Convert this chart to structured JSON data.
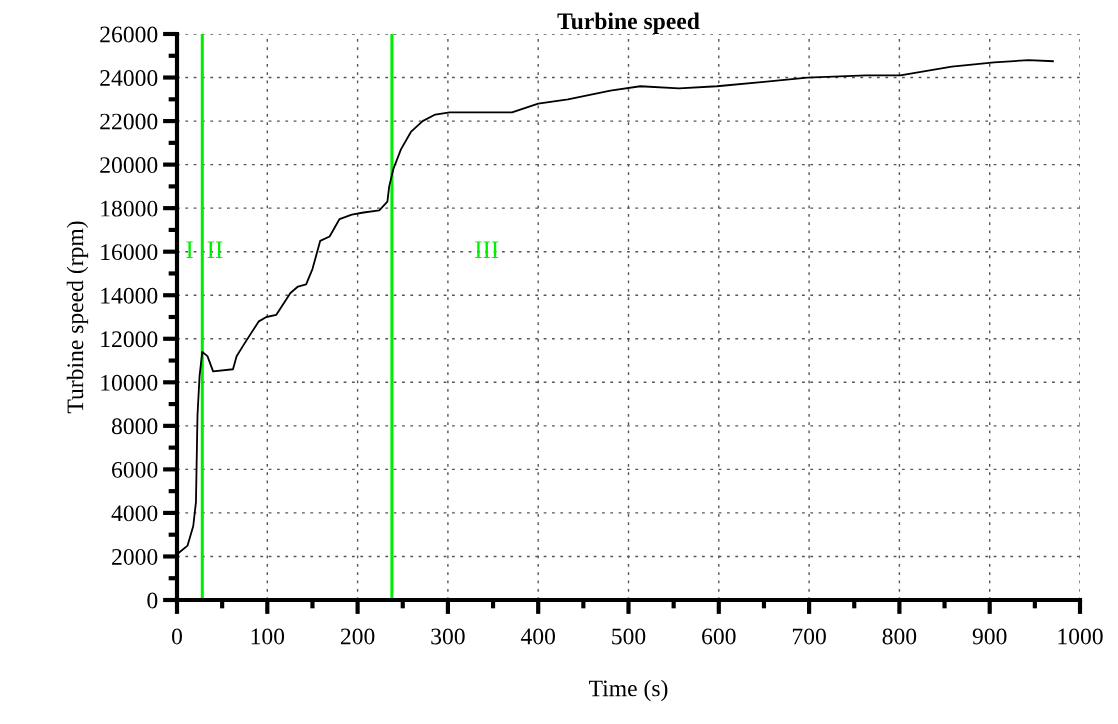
{
  "chart_data": {
    "type": "line",
    "title": "Turbine speed",
    "xlabel": "Time (s)",
    "ylabel": "Turbine speed (rpm)",
    "xlim": [
      0,
      1000
    ],
    "xticks": [
      0,
      100,
      200,
      300,
      400,
      500,
      600,
      700,
      800,
      900,
      1000
    ],
    "ylim": [
      0,
      26000
    ],
    "yticks": [
      0,
      2000,
      4000,
      6000,
      8000,
      10000,
      12000,
      14000,
      16000,
      18000,
      20000,
      22000,
      24000,
      26000
    ],
    "grid": true,
    "line_style": "solid",
    "marker": "none",
    "series": [
      {
        "color": "#000000",
        "x": [
          0,
          11.7,
          18,
          21,
          22.7,
          25,
          28,
          33.7,
          40,
          62,
          66,
          75,
          90.6,
          99,
          110,
          125.6,
          134,
          143,
          150,
          158.6,
          169,
          180,
          193.6,
          206.7,
          224,
          233,
          235,
          239.6,
          248,
          259,
          272,
          286,
          302,
          371,
          400,
          433,
          480,
          513,
          556,
          598,
          650,
          698,
          763,
          801,
          858,
          905,
          943,
          970
        ],
        "values": [
          2100,
          2500,
          3400,
          4500,
          8500,
          10300,
          11400,
          11200,
          10500,
          10600,
          11200,
          11800,
          12800,
          13000,
          13100,
          14100,
          14400,
          14500,
          15200,
          16500,
          16700,
          17500,
          17700,
          17800,
          17900,
          18300,
          19000,
          19800,
          20700,
          21500,
          22000,
          22300,
          22400,
          22400,
          22800,
          23000,
          23400,
          23600,
          23500,
          23600,
          23800,
          24000,
          24100,
          24100,
          24500,
          24700,
          24800,
          24750
        ]
      }
    ],
    "ref_lines": [
      {
        "axis": "x",
        "value": 28,
        "color": "#00ee00",
        "line_style": "solid"
      },
      {
        "axis": "x",
        "value": 238,
        "color": "#00ee00",
        "line_style": "solid"
      }
    ],
    "annotations": [
      "I",
      "II",
      "III"
    ]
  }
}
